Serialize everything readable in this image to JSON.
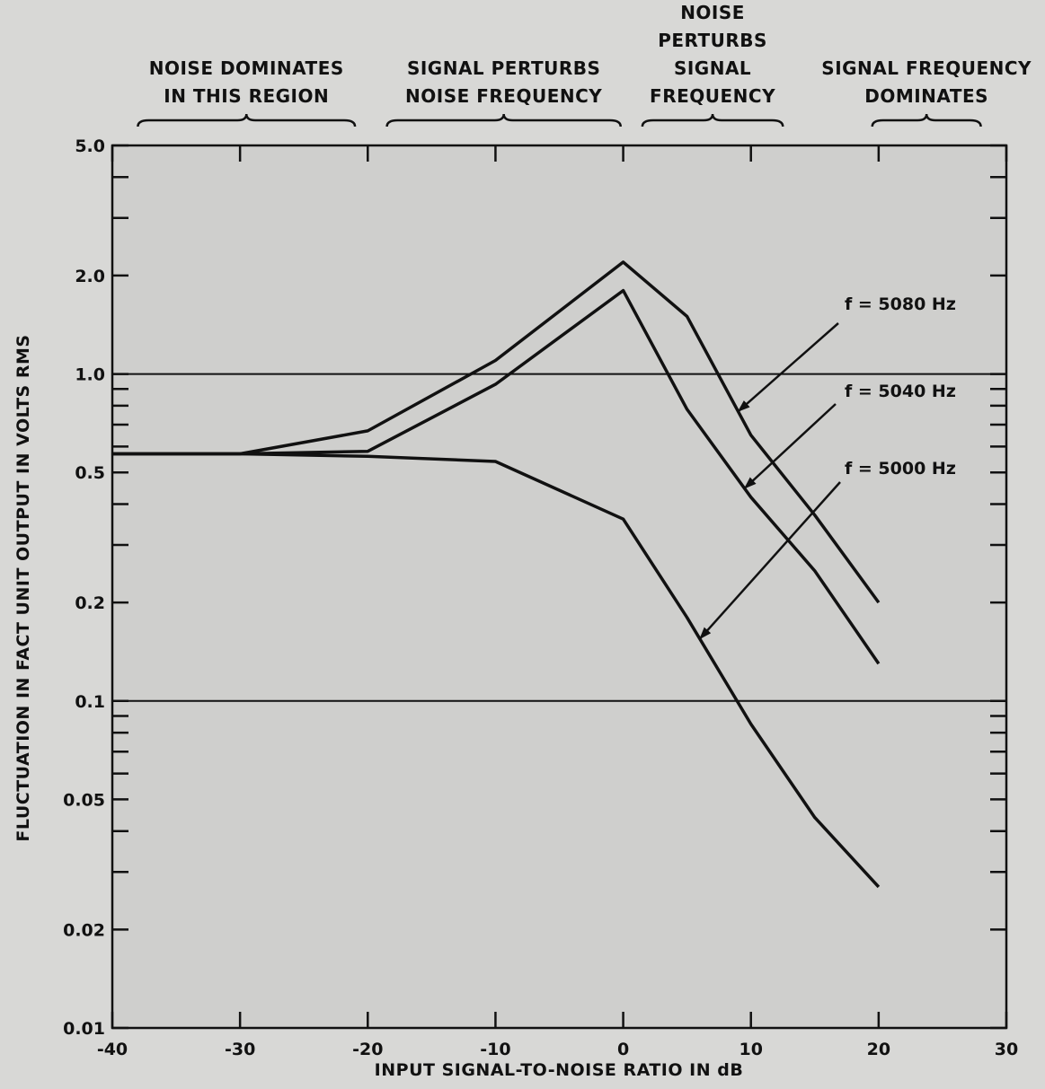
{
  "colors": {
    "background": "#d8d8d6",
    "plot_panel": "#cfcfcd",
    "ink": "#111111"
  },
  "chart_data": {
    "type": "line",
    "title": "",
    "xlabel": "INPUT SIGNAL-TO-NOISE RATIO IN dB",
    "ylabel": "FLUCTUATION IN FACT UNIT OUTPUT IN VOLTS RMS",
    "xlim": [
      -40,
      30
    ],
    "ylim": [
      0.01,
      5.0
    ],
    "yscale": "log",
    "x_ticks": [
      {
        "value": -40,
        "label": "-40"
      },
      {
        "value": -30,
        "label": "-30"
      },
      {
        "value": -20,
        "label": "-20"
      },
      {
        "value": -10,
        "label": "-10"
      },
      {
        "value": 0,
        "label": "0"
      },
      {
        "value": 10,
        "label": "10"
      },
      {
        "value": 20,
        "label": "20"
      },
      {
        "value": 30,
        "label": "30"
      }
    ],
    "y_ticks": [
      {
        "value": 5.0,
        "label": "5.0"
      },
      {
        "value": 2.0,
        "label": "2.0"
      },
      {
        "value": 1.0,
        "label": "1.0"
      },
      {
        "value": 0.5,
        "label": "0.5"
      },
      {
        "value": 0.2,
        "label": "0.2"
      },
      {
        "value": 0.1,
        "label": "0.1"
      },
      {
        "value": 0.05,
        "label": "0.05"
      },
      {
        "value": 0.02,
        "label": "0.02"
      },
      {
        "value": 0.01,
        "label": "0.01"
      }
    ],
    "gridlines_y": [
      1.0,
      0.1
    ],
    "regions": [
      {
        "lines": [
          "NOISE DOMINATES",
          "IN THIS REGION"
        ],
        "x_range": [
          -38,
          -21
        ]
      },
      {
        "lines": [
          "SIGNAL PERTURBS",
          "NOISE FREQUENCY"
        ],
        "x_range": [
          -18.5,
          -0.2
        ]
      },
      {
        "lines": [
          "NOISE",
          "PERTURBS",
          "SIGNAL",
          "FREQUENCY"
        ],
        "x_range": [
          1.5,
          12.5
        ]
      },
      {
        "lines": [
          "SIGNAL FREQUENCY",
          "DOMINATES"
        ],
        "x_range": [
          19.5,
          28
        ]
      }
    ],
    "series": [
      {
        "name": "f = 5080 Hz",
        "x": [
          -40,
          -30,
          -20,
          -10,
          0,
          5,
          10,
          15,
          20
        ],
        "y": [
          0.57,
          0.57,
          0.67,
          1.1,
          2.2,
          1.5,
          0.65,
          0.37,
          0.2
        ]
      },
      {
        "name": "f = 5040 Hz",
        "x": [
          -40,
          -30,
          -20,
          -10,
          0,
          5,
          10,
          15,
          20
        ],
        "y": [
          0.57,
          0.57,
          0.58,
          0.93,
          1.8,
          0.78,
          0.42,
          0.25,
          0.13
        ]
      },
      {
        "name": "f = 5000 Hz",
        "x": [
          -40,
          -30,
          -20,
          -10,
          0,
          5,
          10,
          15,
          20
        ],
        "y": [
          0.57,
          0.57,
          0.56,
          0.54,
          0.36,
          0.18,
          0.085,
          0.044,
          0.027
        ]
      }
    ],
    "annotations": [
      {
        "text": "f =  5080 Hz",
        "series": 0,
        "point_x": 9
      },
      {
        "text": "f =  5040 Hz",
        "series": 1,
        "point_x": 9.5
      },
      {
        "text": "f =  5000 Hz",
        "series": 2,
        "point_x": 6
      }
    ]
  }
}
